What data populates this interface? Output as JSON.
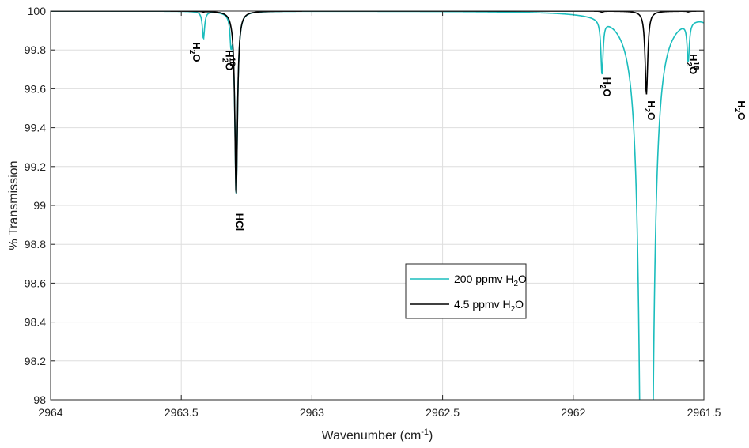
{
  "chart_data": {
    "type": "line",
    "xlabel": "Wavenumber (cm",
    "xlabel_sup": "-1",
    "xlabel_tail": ")",
    "ylabel": "% Transmission",
    "xlim": [
      2964,
      2961.5
    ],
    "x_reversed": true,
    "ylim": [
      98,
      100
    ],
    "grid": true,
    "x_ticks": [
      2964,
      2963.5,
      2963,
      2962.5,
      2962,
      2961.5
    ],
    "x_tick_labels": [
      "2964",
      "2963.5",
      "2963",
      "2962.5",
      "2962",
      "2961.5"
    ],
    "y_ticks": [
      98,
      98.2,
      98.4,
      98.6,
      98.8,
      99,
      99.2,
      99.4,
      99.6,
      99.8,
      100
    ],
    "y_tick_labels": [
      "98",
      "98.2",
      "98.4",
      "98.6",
      "98.8",
      "99",
      "99.2",
      "99.4",
      "99.6",
      "99.8",
      "100"
    ],
    "legend_position": "center-right",
    "legend": [
      {
        "text": "200 ppmv H",
        "sub": "2",
        "tail": "O",
        "color": "#1bbdbd"
      },
      {
        "text": "4.5 ppmv H",
        "sub": "2",
        "tail": "O",
        "color": "#000000"
      }
    ],
    "series": [
      {
        "color": "#1bbdbd",
        "baseline": 100,
        "lines": [
          {
            "center": 2963.415,
            "depth": 0.14,
            "width": 0.005
          },
          {
            "center": 2963.31,
            "depth": 0.12,
            "width": 0.004
          },
          {
            "center": 2963.29,
            "depth": 0.95,
            "width": 0.006
          },
          {
            "center": 2961.89,
            "depth": 0.28,
            "width": 0.005
          },
          {
            "center": 2961.72,
            "depth": 40,
            "width": 0.006
          },
          {
            "center": 2961.56,
            "depth": 0.2,
            "width": 0.005
          },
          {
            "center": 2961.44,
            "depth": 3.0,
            "width": 0.006
          }
        ]
      },
      {
        "color": "#000000",
        "baseline": 100,
        "lines": [
          {
            "center": 2963.415,
            "depth": 0.003,
            "width": 0.005
          },
          {
            "center": 2963.31,
            "depth": 0.003,
            "width": 0.004
          },
          {
            "center": 2963.29,
            "depth": 0.95,
            "width": 0.006
          },
          {
            "center": 2961.89,
            "depth": 0.006,
            "width": 0.005
          },
          {
            "center": 2961.72,
            "depth": 0.43,
            "width": 0.006
          },
          {
            "center": 2961.56,
            "depth": 0.004,
            "width": 0.005
          }
        ]
      }
    ],
    "annotations": [
      {
        "id": "h2o-1",
        "base": "H",
        "sub": "2",
        "tail": "O",
        "sup": "",
        "x": 2963.455,
        "y": 99.84
      },
      {
        "id": "h218o-1",
        "base": "H",
        "sub": "2",
        "tail": "O",
        "sup": "18",
        "x": 2963.33,
        "y": 99.8
      },
      {
        "id": "hcl",
        "base": "HCl",
        "sub": "",
        "tail": "",
        "sup": "",
        "x": 2963.29,
        "y": 98.96
      },
      {
        "id": "h2o-2",
        "base": "H",
        "sub": "2",
        "tail": "O",
        "sup": "",
        "x": 2961.885,
        "y": 99.66
      },
      {
        "id": "h2o-3",
        "base": "H",
        "sub": "2",
        "tail": "O",
        "sup": "",
        "x": 2961.715,
        "y": 99.54
      },
      {
        "id": "h218o-2",
        "base": "H",
        "sub": "2",
        "tail": "O",
        "sup": "18",
        "x": 2961.555,
        "y": 99.78
      },
      {
        "id": "h2o-4",
        "base": "H",
        "sub": "2",
        "tail": "O",
        "sup": "",
        "x": 2961.37,
        "y": 99.54
      }
    ]
  }
}
